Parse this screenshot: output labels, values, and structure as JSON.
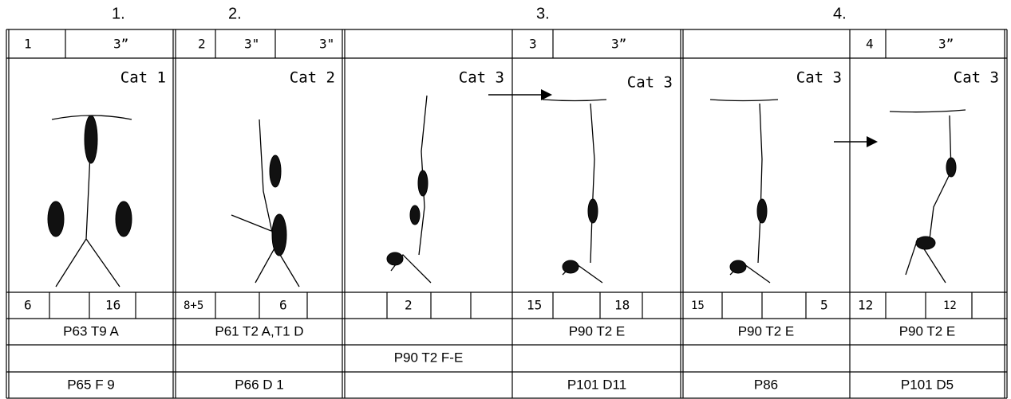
{
  "steps": [
    "1.",
    "2.",
    "3.",
    "4."
  ],
  "columns": [
    {
      "top": [
        "1",
        "3”"
      ],
      "category": "Cat 1",
      "counts": [
        "6",
        "16"
      ],
      "refs": [
        "P63 T9 A",
        "P65 F 9"
      ]
    },
    {
      "top": [
        "2",
        "3\"",
        "3\""
      ],
      "category": "Cat 2",
      "counts": [
        "8+5",
        "6"
      ],
      "refs": [
        "P61 T2 A,T1 D",
        "P66 D 1"
      ]
    },
    {
      "category": "Cat 3",
      "counts": [
        "2"
      ],
      "refs": [
        "P90 T2 F-E"
      ]
    },
    {
      "top": [
        "3",
        "3”"
      ],
      "category": "Cat 3",
      "counts": [
        "15",
        "18"
      ],
      "refs": [
        "P90 T2 E",
        "P101 D11"
      ]
    },
    {
      "category": "Cat 3",
      "counts": [
        "15",
        "5"
      ],
      "refs": [
        "P90 T2 E",
        "P86"
      ]
    },
    {
      "top": [
        "4",
        "3”"
      ],
      "category": "Cat 3",
      "counts": [
        "12",
        "12"
      ],
      "refs": [
        "P90 T2 E",
        "P101 D5"
      ]
    }
  ]
}
